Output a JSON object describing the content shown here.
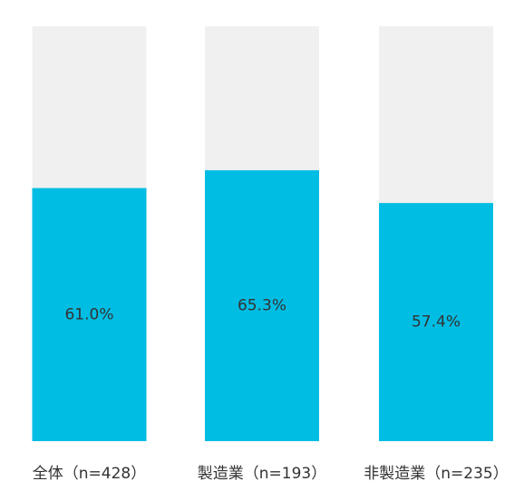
{
  "chart_data": {
    "type": "bar",
    "categories": [
      "全体（n=428）",
      "製造業（n=193）",
      "非製造業（n=235）"
    ],
    "values": [
      61.0,
      65.3,
      57.4
    ],
    "value_labels": [
      "61.0%",
      "65.3%",
      "57.4%"
    ],
    "color": "#00bde3",
    "track_color": "#f0f0f0",
    "ylim": [
      0,
      100
    ],
    "grid": false
  }
}
